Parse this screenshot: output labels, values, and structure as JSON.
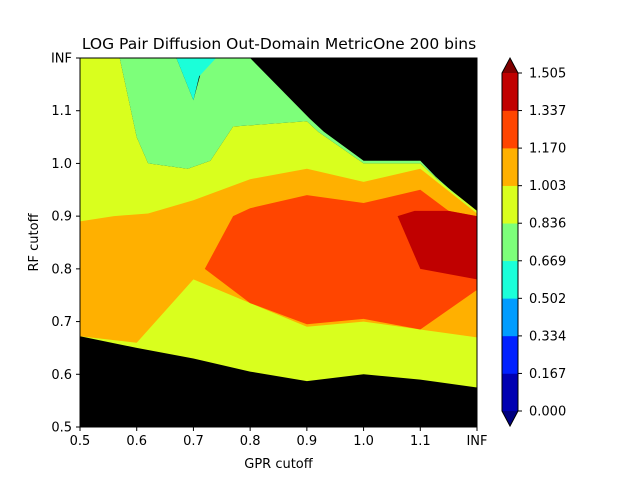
{
  "chart_data": {
    "type": "contour",
    "title": "LOG Pair Diffusion Out-Domain MetricOne 200 bins",
    "xlabel": "GPR cutoff",
    "ylabel": "RF cutoff",
    "x_ticks": [
      "0.5",
      "0.6",
      "0.7",
      "0.8",
      "0.9",
      "1.0",
      "1.1",
      "INF"
    ],
    "y_ticks": [
      "0.5",
      "0.6",
      "0.7",
      "0.8",
      "0.9",
      "1.0",
      "1.1",
      "INF"
    ],
    "xlim": [
      0.5,
      1.2
    ],
    "ylim": [
      0.5,
      1.2
    ],
    "colorbar": {
      "levels": [
        0.0,
        0.167,
        0.334,
        0.502,
        0.669,
        0.836,
        1.003,
        1.17,
        1.337,
        1.505
      ],
      "labels": [
        "0.000",
        "0.167",
        "0.334",
        "0.502",
        "0.669",
        "0.836",
        "1.003",
        "1.170",
        "1.337",
        "1.505"
      ],
      "colors": [
        "#0000b2",
        "#0020ff",
        "#009cff",
        "#1bffd9",
        "#7dff7a",
        "#d9ff1e",
        "#ffb000",
        "#ff4500",
        "#c00000"
      ],
      "under_color": "#000080",
      "over_color": "#800000",
      "extend": "both"
    },
    "background_color": "#000000",
    "regions": [
      {
        "level": "0.836-1.003",
        "color": "#d9ff1e",
        "boundary": [
          [
            0.5,
            1.2
          ],
          [
            0.57,
            1.2
          ],
          [
            0.6,
            1.05
          ],
          [
            0.62,
            1.0
          ],
          [
            0.69,
            0.99
          ],
          [
            0.73,
            1.005
          ],
          [
            0.77,
            1.07
          ],
          [
            0.9,
            1.08
          ],
          [
            0.92,
            1.06
          ],
          [
            1.0,
            1.0
          ],
          [
            1.06,
            1.0
          ],
          [
            1.1,
            1.0
          ],
          [
            1.13,
            0.97
          ],
          [
            1.2,
            0.91
          ],
          [
            1.2,
            0.575
          ],
          [
            1.1,
            0.59
          ],
          [
            1.0,
            0.6
          ],
          [
            0.9,
            0.587
          ],
          [
            0.8,
            0.605
          ],
          [
            0.7,
            0.63
          ],
          [
            0.6,
            0.65
          ],
          [
            0.5,
            0.672
          ]
        ]
      },
      {
        "level": "0.669-0.836",
        "color": "#7dff7a",
        "boundary": [
          [
            0.57,
            1.2
          ],
          [
            0.67,
            1.2
          ],
          [
            0.7,
            1.12
          ],
          [
            0.72,
            1.2
          ],
          [
            0.8,
            1.2
          ],
          [
            0.905,
            1.085
          ],
          [
            0.93,
            1.06
          ],
          [
            1.0,
            1.005
          ],
          [
            1.1,
            1.005
          ],
          [
            1.127,
            0.975
          ],
          [
            1.2,
            0.905
          ],
          [
            1.13,
            0.97
          ],
          [
            1.1,
            1.0
          ],
          [
            1.06,
            1.0
          ],
          [
            1.0,
            1.0
          ],
          [
            0.92,
            1.06
          ],
          [
            0.9,
            1.08
          ],
          [
            0.77,
            1.07
          ],
          [
            0.73,
            1.005
          ],
          [
            0.69,
            0.99
          ],
          [
            0.62,
            1.0
          ],
          [
            0.6,
            1.05
          ]
        ]
      },
      {
        "level": "0.502-0.669",
        "color": "#1bffd9",
        "boundary": [
          [
            0.67,
            1.2
          ],
          [
            0.74,
            1.2
          ],
          [
            0.71,
            1.165
          ],
          [
            0.7,
            1.12
          ]
        ]
      },
      {
        "level": "1.003-1.170",
        "color": "#ffb000",
        "boundary": [
          [
            0.5,
            0.89
          ],
          [
            0.56,
            0.9
          ],
          [
            0.62,
            0.905
          ],
          [
            0.7,
            0.93
          ],
          [
            0.8,
            0.97
          ],
          [
            0.9,
            0.99
          ],
          [
            1.0,
            0.965
          ],
          [
            1.1,
            0.99
          ],
          [
            1.2,
            0.905
          ],
          [
            1.2,
            0.67
          ],
          [
            1.1,
            0.685
          ],
          [
            1.0,
            0.7
          ],
          [
            0.9,
            0.69
          ],
          [
            0.8,
            0.735
          ],
          [
            0.7,
            0.78
          ],
          [
            0.6,
            0.66
          ],
          [
            0.5,
            0.672
          ]
        ]
      },
      {
        "level": "1.170-1.337",
        "color": "#ff4500",
        "boundary": [
          [
            0.72,
            0.8
          ],
          [
            0.77,
            0.9
          ],
          [
            0.8,
            0.915
          ],
          [
            0.9,
            0.94
          ],
          [
            1.0,
            0.925
          ],
          [
            1.1,
            0.95
          ],
          [
            1.15,
            0.91
          ],
          [
            1.2,
            0.9
          ],
          [
            1.2,
            0.76
          ],
          [
            1.1,
            0.685
          ],
          [
            1.0,
            0.705
          ],
          [
            0.9,
            0.695
          ],
          [
            0.8,
            0.735
          ]
        ]
      },
      {
        "level": "1.337-1.505",
        "color": "#c00000",
        "boundary": [
          [
            1.06,
            0.9
          ],
          [
            1.09,
            0.91
          ],
          [
            1.15,
            0.91
          ],
          [
            1.2,
            0.9
          ],
          [
            1.2,
            0.78
          ],
          [
            1.1,
            0.8
          ]
        ]
      }
    ]
  }
}
